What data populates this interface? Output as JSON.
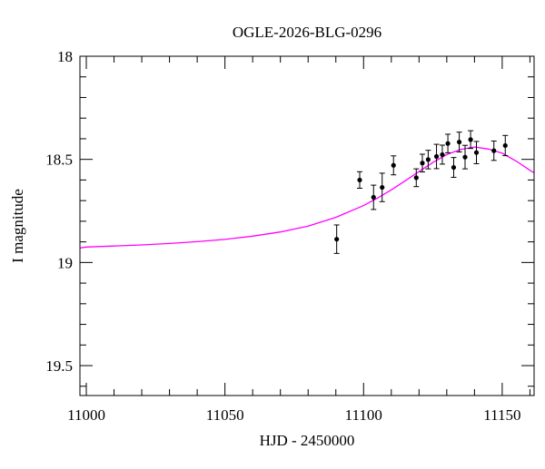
{
  "chart_data": {
    "type": "scatter",
    "title": "OGLE-2026-BLG-0296",
    "xlabel": "HJD - 2450000",
    "ylabel": "I magnitude",
    "xlim": [
      10997.7,
      11161.5
    ],
    "ylim": [
      19.645,
      18.0
    ],
    "y_inverted": true,
    "grid": false,
    "x_ticks": [
      11000,
      11050,
      11100,
      11150
    ],
    "x_tick_labels": [
      "11000",
      "11050",
      "11100",
      "11150"
    ],
    "y_ticks": [
      18,
      18.5,
      19,
      19.5
    ],
    "y_tick_labels": [
      "18",
      "18.5",
      "19",
      "19.5"
    ],
    "x_minor_step": 10,
    "y_minor_step": 0.1,
    "colors": {
      "points": "#000000",
      "model": "#ff00ff",
      "axes": "#000000"
    },
    "series": [
      {
        "kind": "points-with-errorbars",
        "x": [
          11090.3,
          11098.6,
          11103.6,
          11106.7,
          11110.8,
          11119.0,
          11121.2,
          11123.3,
          11126.3,
          11128.4,
          11130.4,
          11132.5,
          11134.5,
          11136.6,
          11138.6,
          11140.7,
          11147.0,
          11151.1
        ],
        "y": [
          18.887,
          18.6,
          18.684,
          18.636,
          18.529,
          18.589,
          18.518,
          18.501,
          18.486,
          18.477,
          18.423,
          18.539,
          18.416,
          18.489,
          18.404,
          18.467,
          18.458,
          18.433
        ],
        "err": [
          0.069,
          0.04,
          0.059,
          0.069,
          0.046,
          0.043,
          0.043,
          0.045,
          0.059,
          0.046,
          0.045,
          0.048,
          0.048,
          0.057,
          0.043,
          0.054,
          0.047,
          0.049
        ]
      },
      {
        "kind": "model-curve",
        "x": [
          10997.7,
          11000,
          11010,
          11020,
          11030,
          11040,
          11050,
          11060,
          11070,
          11080,
          11090,
          11100,
          11105,
          11110,
          11115,
          11120,
          11125,
          11130,
          11135,
          11140,
          11145,
          11150,
          11155,
          11160,
          11161.5
        ],
        "y": [
          18.93,
          18.925,
          18.92,
          18.915,
          18.908,
          18.899,
          18.888,
          18.872,
          18.852,
          18.824,
          18.781,
          18.724,
          18.688,
          18.648,
          18.604,
          18.559,
          18.515,
          18.477,
          18.452,
          18.44,
          18.45,
          18.47,
          18.508,
          18.553,
          18.565
        ]
      }
    ]
  }
}
